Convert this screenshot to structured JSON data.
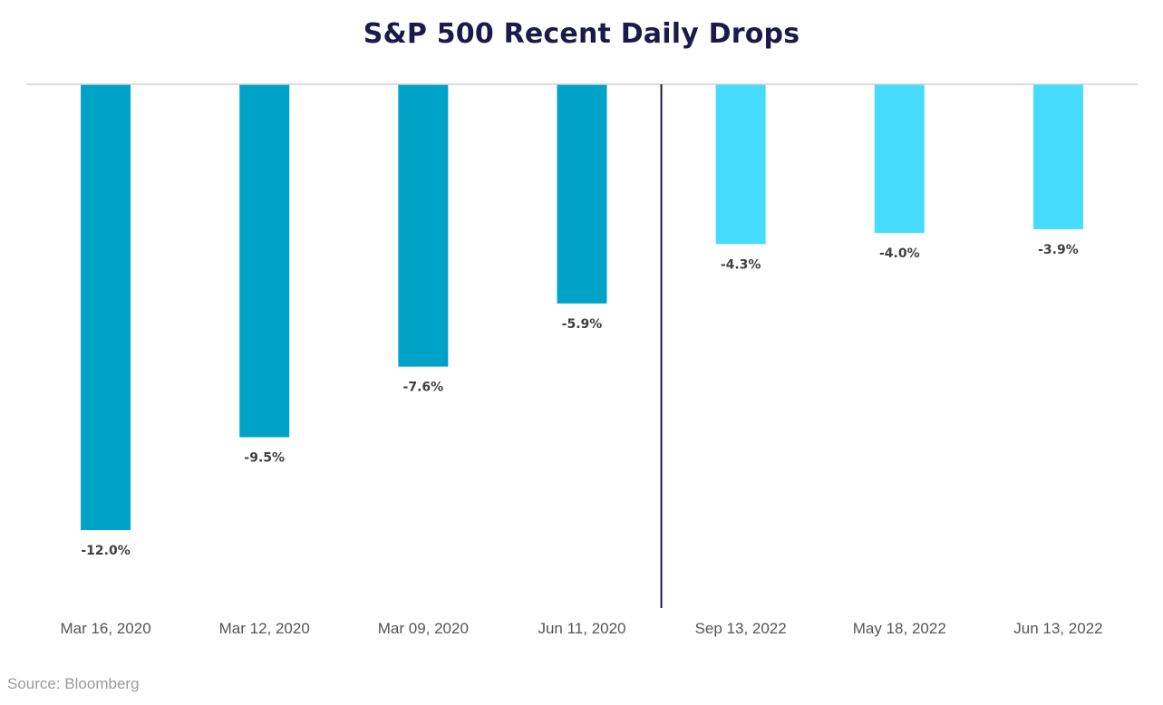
{
  "chart_data": {
    "type": "bar",
    "title": "S&P 500 Recent Daily Drops",
    "categories": [
      "Mar 16, 2020",
      "Mar 12, 2020",
      "Mar 09, 2020",
      "Jun 11, 2020",
      "Sep 13, 2022",
      "May 18, 2022",
      "Jun 13, 2022"
    ],
    "values": [
      -12.0,
      -9.5,
      -7.6,
      -5.9,
      -4.3,
      -4.0,
      -3.9
    ],
    "data_labels": [
      "-12.0%",
      "-9.5%",
      "-7.6%",
      "-5.9%",
      "-4.3%",
      "-4.0%",
      "-3.9%"
    ],
    "bar_groups": [
      "2020",
      "2020",
      "2020",
      "2020",
      "2022",
      "2022",
      "2022"
    ],
    "colors": {
      "2020": "#00a3c8",
      "2022": "#45dcff",
      "divider": "#1c1a4a",
      "axis": "#d0d0d0"
    },
    "ylim": [
      -14.1,
      0
    ],
    "grid": false,
    "legend": "none"
  },
  "source": "Source: Bloomberg"
}
